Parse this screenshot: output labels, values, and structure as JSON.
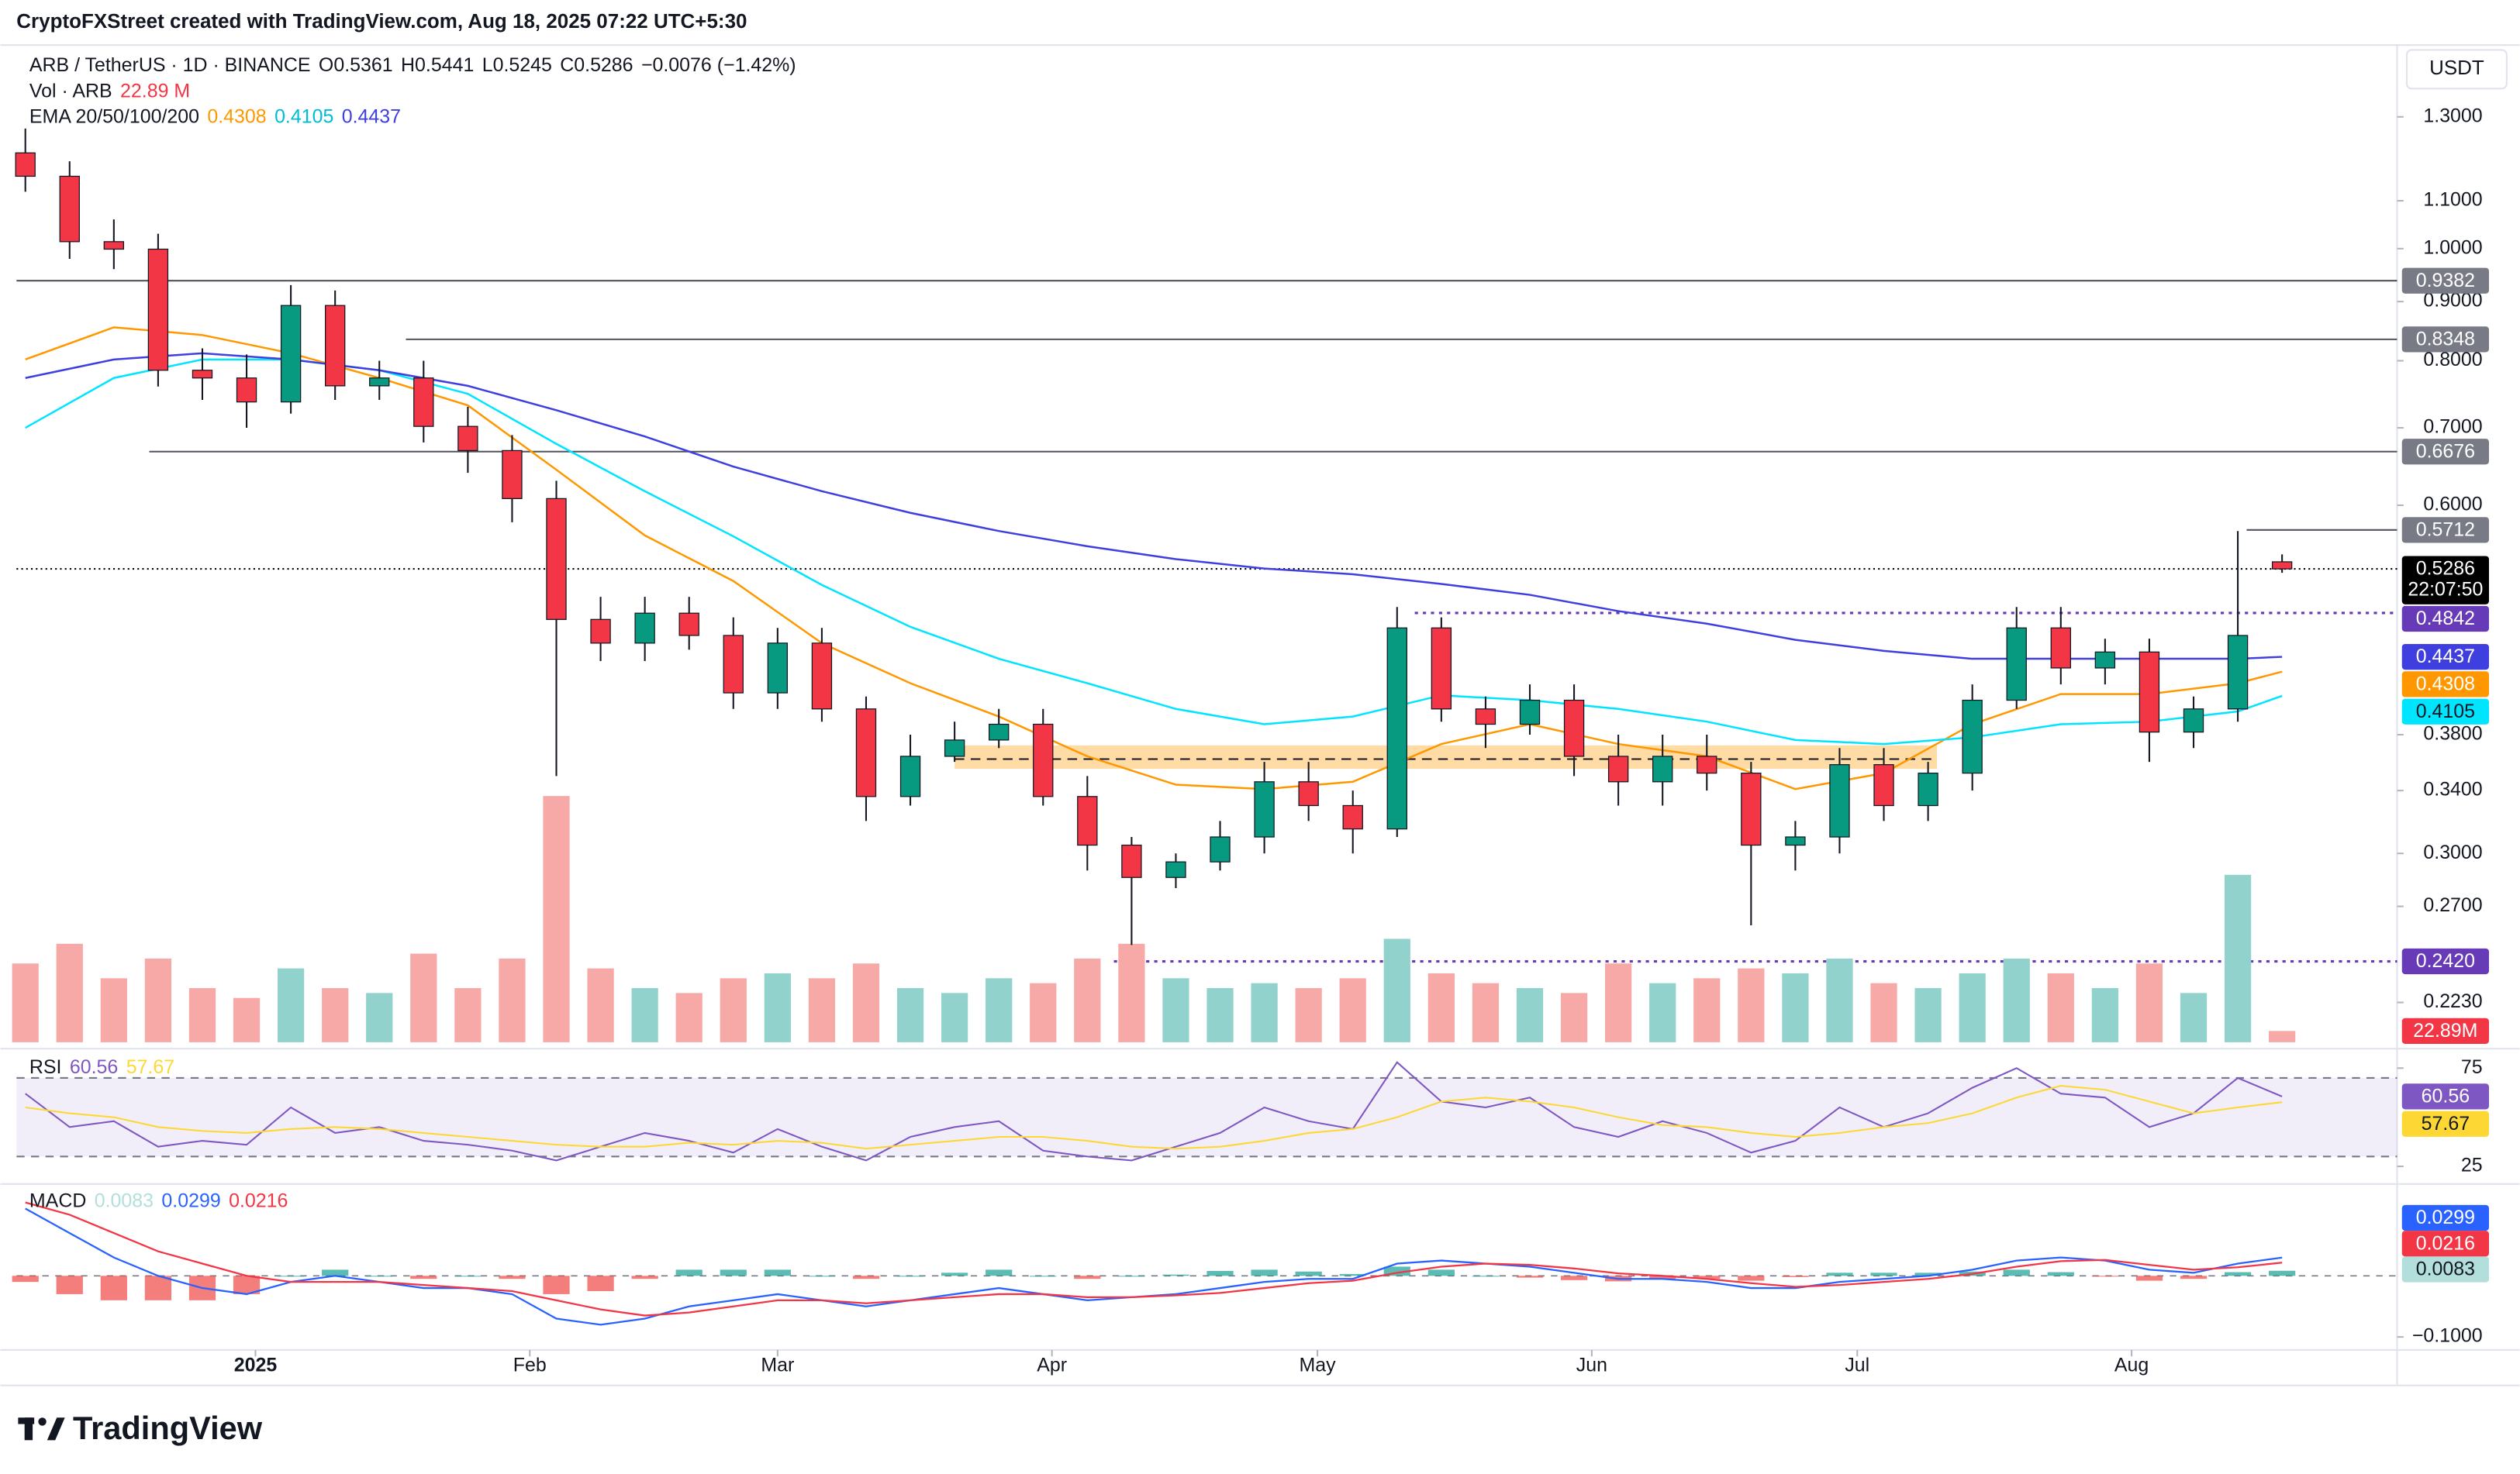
{
  "header": {
    "credit": "CryptoFXStreet created with TradingView.com, Aug 18, 2025 07:22 UTC+5:30",
    "currency": "USDT",
    "logo": "TradingView"
  },
  "chart_data": {
    "type": "candlestick",
    "title": "ARB / TetherUS · 1D · BINANCE",
    "ohlc_legend": [
      {
        "key": "O",
        "value": "0.5361"
      },
      {
        "key": "H",
        "value": "0.5441"
      },
      {
        "key": "L",
        "value": "0.5245"
      },
      {
        "key": "C",
        "value": "0.5286"
      }
    ],
    "change": "−0.0076 (−1.42%)",
    "x": [
      -26,
      -21,
      -16,
      -11,
      -6,
      -1,
      4,
      9,
      14,
      19,
      24,
      29,
      34,
      39,
      44,
      49,
      54,
      59,
      64,
      69,
      74,
      79,
      84,
      89,
      94,
      99,
      104,
      109,
      114,
      119,
      124,
      129,
      134,
      139,
      144,
      149,
      154,
      159,
      164,
      169,
      174,
      179,
      184,
      189,
      194,
      199,
      204,
      209,
      214,
      219,
      224,
      229
    ],
    "xlim": [
      -27,
      242
    ],
    "xticks": [
      {
        "value": 0,
        "label": "2025"
      },
      {
        "value": 31,
        "label": "Feb"
      },
      {
        "value": 59,
        "label": "Mar"
      },
      {
        "value": 90,
        "label": "Apr"
      },
      {
        "value": 120,
        "label": "May"
      },
      {
        "value": 151,
        "label": "Jun"
      },
      {
        "value": 181,
        "label": "Jul"
      },
      {
        "value": 212,
        "label": "Aug"
      }
    ],
    "ylim": [
      0.206,
      1.49
    ],
    "log_scale": true,
    "grid": false,
    "yticks": [
      {
        "value": 1.3,
        "label": "1.3000"
      },
      {
        "value": 1.1,
        "label": "1.1000"
      },
      {
        "value": 1,
        "label": "1.0000"
      },
      {
        "value": 0.9,
        "label": "0.9000"
      },
      {
        "value": 0.8,
        "label": "0.8000"
      },
      {
        "value": 0.7,
        "label": "0.7000"
      },
      {
        "value": 0.6,
        "label": "0.6000"
      },
      {
        "value": 0.38,
        "label": "0.3800"
      },
      {
        "value": 0.34,
        "label": "0.3400"
      },
      {
        "value": 0.3,
        "label": "0.3000"
      },
      {
        "value": 0.27,
        "label": "0.2700"
      },
      {
        "value": 0.223,
        "label": "0.2230"
      }
    ],
    "open": [
      1.21,
      1.155,
      1.014,
      0.999,
      0.785,
      0.773,
      0.737,
      0.893,
      0.761,
      0.773,
      0.702,
      0.669,
      0.608,
      0.478,
      0.456,
      0.484,
      0.463,
      0.413,
      0.456,
      0.4,
      0.336,
      0.364,
      0.376,
      0.388,
      0.336,
      0.305,
      0.286,
      0.295,
      0.31,
      0.346,
      0.33,
      0.315,
      0.47,
      0.4,
      0.388,
      0.407,
      0.364,
      0.346,
      0.364,
      0.352,
      0.305,
      0.31,
      0.358,
      0.33,
      0.352,
      0.407,
      0.47,
      0.434,
      0.448,
      0.382,
      0.4,
      0.5361
    ],
    "high": [
      1.27,
      1.19,
      1.06,
      1.03,
      0.82,
      0.81,
      0.93,
      0.92,
      0.8,
      0.8,
      0.73,
      0.69,
      0.63,
      0.5,
      0.5,
      0.5,
      0.48,
      0.47,
      0.47,
      0.41,
      0.38,
      0.39,
      0.4,
      0.4,
      0.35,
      0.31,
      0.3,
      0.32,
      0.36,
      0.36,
      0.34,
      0.49,
      0.48,
      0.41,
      0.42,
      0.42,
      0.38,
      0.38,
      0.38,
      0.36,
      0.32,
      0.37,
      0.37,
      0.36,
      0.42,
      0.49,
      0.49,
      0.46,
      0.46,
      0.41,
      0.57,
      0.5441
    ],
    "low": [
      1.12,
      0.98,
      0.96,
      0.76,
      0.74,
      0.7,
      0.72,
      0.74,
      0.74,
      0.68,
      0.64,
      0.58,
      0.35,
      0.44,
      0.44,
      0.45,
      0.4,
      0.4,
      0.39,
      0.32,
      0.33,
      0.36,
      0.37,
      0.33,
      0.29,
      0.25,
      0.28,
      0.29,
      0.3,
      0.32,
      0.3,
      0.31,
      0.39,
      0.37,
      0.38,
      0.35,
      0.33,
      0.33,
      0.34,
      0.26,
      0.29,
      0.3,
      0.32,
      0.32,
      0.34,
      0.4,
      0.42,
      0.42,
      0.36,
      0.37,
      0.39,
      0.5245
    ],
    "close": [
      1.155,
      1.014,
      0.999,
      0.785,
      0.773,
      0.737,
      0.893,
      0.761,
      0.773,
      0.702,
      0.669,
      0.608,
      0.478,
      0.456,
      0.484,
      0.463,
      0.413,
      0.456,
      0.4,
      0.336,
      0.364,
      0.376,
      0.388,
      0.336,
      0.305,
      0.286,
      0.295,
      0.31,
      0.346,
      0.33,
      0.315,
      0.47,
      0.4,
      0.388,
      0.407,
      0.364,
      0.346,
      0.364,
      0.352,
      0.305,
      0.31,
      0.358,
      0.33,
      0.352,
      0.407,
      0.47,
      0.434,
      0.448,
      0.382,
      0.4,
      0.463,
      0.5286
    ],
    "up_color": "#089981",
    "down_color": "#f23645",
    "volume": {
      "name": "Vol · ARB",
      "ylim": [
        0,
        700
      ],
      "up_color": "#92d2cc",
      "down_color": "#f7a9a7",
      "values": [
        160,
        200,
        130,
        170,
        110,
        90,
        150,
        110,
        100,
        180,
        110,
        170,
        500,
        150,
        110,
        100,
        130,
        140,
        130,
        160,
        110,
        100,
        130,
        120,
        170,
        200,
        130,
        110,
        120,
        110,
        130,
        210,
        140,
        120,
        110,
        100,
        160,
        120,
        130,
        150,
        140,
        170,
        120,
        110,
        140,
        170,
        140,
        110,
        160,
        100,
        340,
        22.89
      ],
      "legend_label": "22.89 M",
      "axis_label": "22.89M",
      "label_color": "#f23645"
    },
    "ema": {
      "name": "EMA 20/50/100/200",
      "x": [
        -26,
        -16,
        -6,
        4,
        14,
        24,
        34,
        44,
        54,
        64,
        74,
        84,
        94,
        104,
        114,
        124,
        134,
        144,
        154,
        164,
        174,
        184,
        194,
        204,
        214,
        224,
        229
      ],
      "series": [
        {
          "color": "#ff9800",
          "value_label": "0.4308",
          "values": [
            0.802,
            0.855,
            0.842,
            0.812,
            0.773,
            0.732,
            0.644,
            0.565,
            0.516,
            0.456,
            0.421,
            0.394,
            0.364,
            0.344,
            0.341,
            0.346,
            0.373,
            0.388,
            0.373,
            0.364,
            0.341,
            0.352,
            0.388,
            0.412,
            0.412,
            0.421,
            0.4308
          ]
        },
        {
          "color": "#00e5ff",
          "value_label": "0.4105",
          "values": [
            0.7,
            0.773,
            0.802,
            0.802,
            0.785,
            0.749,
            0.678,
            0.617,
            0.564,
            0.512,
            0.471,
            0.442,
            0.421,
            0.4,
            0.388,
            0.394,
            0.411,
            0.407,
            0.4,
            0.39,
            0.376,
            0.373,
            0.378,
            0.388,
            0.39,
            0.398,
            0.4105
          ]
        },
        {
          "color": "#3f3fe0",
          "value_label": "0.4437",
          "values": [
            0.773,
            0.802,
            0.812,
            0.802,
            0.785,
            0.761,
            0.725,
            0.688,
            0.648,
            0.617,
            0.591,
            0.57,
            0.553,
            0.539,
            0.529,
            0.523,
            0.513,
            0.502,
            0.486,
            0.474,
            0.459,
            0.449,
            0.442,
            0.442,
            0.442,
            0.442,
            0.4437
          ]
        }
      ]
    },
    "levels": [
      {
        "value": 0.9382,
        "label": "0.9382",
        "from": -27,
        "style": "solid",
        "color": "#787b86"
      },
      {
        "value": 0.8348,
        "label": "0.8348",
        "from": 17,
        "style": "solid",
        "color": "#787b86"
      },
      {
        "value": 0.6676,
        "label": "0.6676",
        "from": -12,
        "style": "solid",
        "color": "#787b86"
      },
      {
        "value": 0.5712,
        "label": "0.5712",
        "from": 225,
        "style": "solid",
        "color": "#787b86"
      },
      {
        "value": 0.4842,
        "label": "0.4842",
        "from": 131,
        "style": "dotted",
        "color": "#673ab7"
      },
      {
        "value": 0.242,
        "label": "0.2420",
        "from": 97,
        "style": "dotted",
        "color": "#673ab7"
      }
    ],
    "last_price": {
      "value": 0.5286,
      "label": "0.5286",
      "countdown": "22:07:50",
      "color": "#000000"
    },
    "zone": {
      "low": 0.355,
      "high": 0.372,
      "mid": 0.362,
      "from": 79,
      "to": 190,
      "color": "#ff9800"
    },
    "rsi": {
      "name": "RSI",
      "ylim": [
        20.1,
        81.6
      ],
      "yticks": [
        25,
        75
      ],
      "levels": [
        30,
        70
      ],
      "series": [
        {
          "color": "#7e57c2",
          "value_label": "60.56",
          "values": [
            62,
            45,
            48,
            35,
            38,
            36,
            55,
            42,
            45,
            38,
            36,
            33,
            28,
            35,
            42,
            38,
            32,
            44,
            35,
            28,
            40,
            45,
            48,
            33,
            30,
            28,
            35,
            42,
            55,
            48,
            44,
            78,
            58,
            55,
            60,
            45,
            40,
            48,
            42,
            32,
            38,
            55,
            45,
            52,
            65,
            75,
            62,
            60,
            45,
            52,
            70,
            60.56
          ]
        },
        {
          "color": "#fdd835",
          "value_label": "57.67",
          "values": [
            55,
            52,
            50,
            45,
            43,
            42,
            44,
            45,
            44,
            42,
            40,
            38,
            36,
            35,
            35,
            37,
            36,
            38,
            37,
            34,
            36,
            38,
            40,
            40,
            38,
            35,
            34,
            35,
            38,
            42,
            44,
            50,
            58,
            60,
            58,
            55,
            50,
            46,
            45,
            42,
            40,
            42,
            45,
            47,
            52,
            60,
            66,
            64,
            58,
            52,
            55,
            57.67
          ]
        }
      ]
    },
    "macd": {
      "name": "MACD",
      "ylim": [
        -0.174,
        0.137
      ],
      "yticks": [
        {
          "value": -0.1,
          "label": "−0.1000"
        }
      ],
      "histogram": {
        "value_label": "0.0083",
        "color": "#b2dfdb",
        "up_color": "#26a69a",
        "down_color": "#ef5350",
        "values": [
          -0.01,
          -0.03,
          -0.04,
          -0.04,
          -0.04,
          -0.03,
          0,
          0.01,
          0,
          -0.005,
          0,
          -0.005,
          -0.03,
          -0.025,
          -0.005,
          0.01,
          0.01,
          0.01,
          0,
          -0.005,
          0,
          0.005,
          0.01,
          0,
          -0.005,
          0,
          0.002,
          0.008,
          0.01,
          0.007,
          0.003,
          0.015,
          0.01,
          0,
          -0.003,
          -0.007,
          -0.009,
          -0.005,
          -0.005,
          -0.008,
          -0.002,
          0.005,
          0.005,
          0.005,
          0.007,
          0.01,
          0.006,
          -0.001,
          -0.008,
          -0.005,
          0.006,
          0.0083
        ]
      },
      "series": [
        {
          "color": "#2962ff",
          "value_label": "0.0299",
          "values": [
            0.11,
            0.07,
            0.03,
            0,
            -0.02,
            -0.03,
            -0.01,
            0,
            -0.01,
            -0.02,
            -0.02,
            -0.03,
            -0.07,
            -0.08,
            -0.07,
            -0.05,
            -0.04,
            -0.03,
            -0.04,
            -0.05,
            -0.04,
            -0.03,
            -0.02,
            -0.03,
            -0.04,
            -0.035,
            -0.03,
            -0.02,
            -0.01,
            -0.005,
            -0.005,
            0.02,
            0.025,
            0.02,
            0.015,
            0.005,
            -0.005,
            -0.005,
            -0.01,
            -0.02,
            -0.02,
            -0.01,
            -0.005,
            0,
            0.01,
            0.025,
            0.03,
            0.025,
            0.01,
            0.005,
            0.02,
            0.0299
          ]
        },
        {
          "color": "#f23645",
          "value_label": "0.0216",
          "values": [
            0.12,
            0.1,
            0.07,
            0.04,
            0.02,
            0,
            -0.01,
            -0.01,
            -0.01,
            -0.015,
            -0.02,
            -0.025,
            -0.04,
            -0.055,
            -0.065,
            -0.06,
            -0.05,
            -0.04,
            -0.04,
            -0.045,
            -0.04,
            -0.035,
            -0.03,
            -0.03,
            -0.035,
            -0.035,
            -0.032,
            -0.028,
            -0.02,
            -0.012,
            -0.008,
            0.005,
            0.015,
            0.02,
            0.018,
            0.012,
            0.004,
            0,
            -0.005,
            -0.012,
            -0.018,
            -0.015,
            -0.01,
            -0.005,
            0.003,
            0.015,
            0.024,
            0.026,
            0.018,
            0.01,
            0.014,
            0.0216
          ]
        }
      ]
    }
  }
}
